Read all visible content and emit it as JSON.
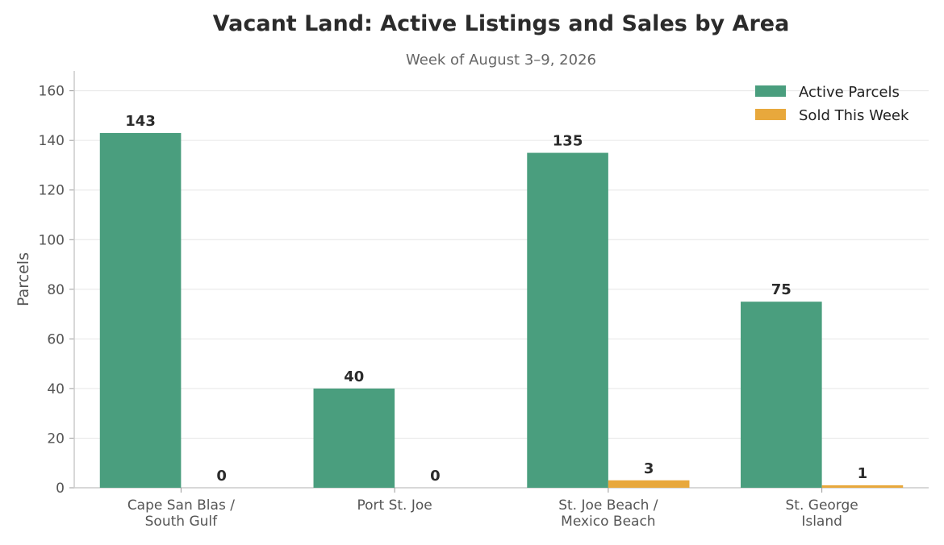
{
  "chart_data": {
    "type": "bar",
    "title": "Vacant Land: Active Listings and Sales by Area",
    "subtitle": "Week of August 3–9, 2026",
    "xlabel": "",
    "ylabel": "Parcels",
    "ylim": [
      0,
      168
    ],
    "yticks": [
      0,
      20,
      40,
      60,
      80,
      100,
      120,
      140,
      160
    ],
    "grid": true,
    "legend_position": "top-right",
    "categories": [
      [
        "Cape San Blas /",
        "South Gulf"
      ],
      [
        "Port St. Joe"
      ],
      [
        "St. Joe Beach /",
        "Mexico Beach"
      ],
      [
        "St. George",
        "Island"
      ]
    ],
    "series": [
      {
        "name": "Active Parcels",
        "color": "#4a9e7e",
        "values": [
          143,
          40,
          135,
          75
        ]
      },
      {
        "name": "Sold This Week",
        "color": "#e8a83c",
        "values": [
          0,
          0,
          3,
          1
        ]
      }
    ]
  }
}
